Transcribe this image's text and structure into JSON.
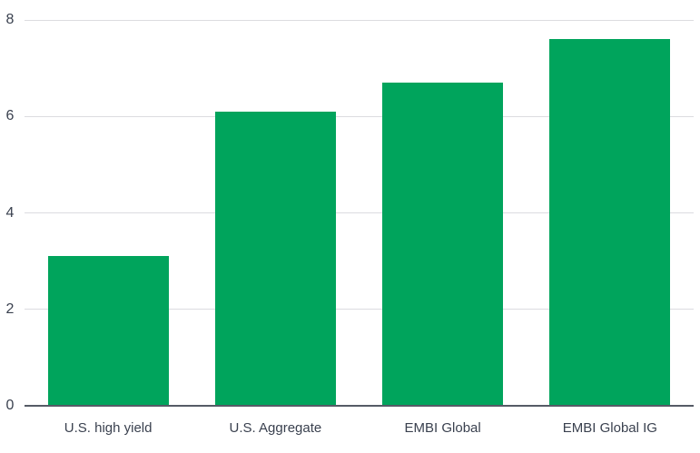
{
  "chart_data": {
    "type": "bar",
    "title": "",
    "xlabel": "",
    "ylabel": "",
    "categories": [
      "U.S. high yield",
      "U.S. Aggregate",
      "EMBI Global",
      "EMBI Global IG"
    ],
    "values": [
      3.1,
      6.1,
      6.7,
      7.6
    ],
    "ylim": [
      0,
      8
    ],
    "yticks": [
      0,
      2,
      4,
      6,
      8
    ],
    "grid": true,
    "legend": false,
    "colors": {
      "bar": "#00a45c",
      "gridline": "#dcdce0",
      "axis_line": "#565b66",
      "tick_text": "#3a414f",
      "background": "#ffffff"
    }
  }
}
